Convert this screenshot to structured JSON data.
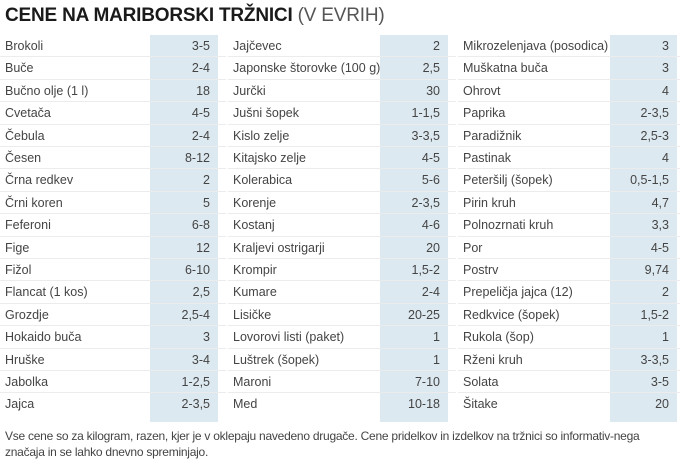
{
  "title": {
    "main": "CENE NA MARIBORSKI TRŽNICI",
    "sub": " (V EVRIH)"
  },
  "colors": {
    "price_column_bg": "#dde9f0",
    "row_divider": "#ececec",
    "text": "#444444"
  },
  "columns": [
    {
      "items": [
        {
          "name": "Brokoli",
          "price": "3-5"
        },
        {
          "name": "Buče",
          "price": "2-4"
        },
        {
          "name": "Bučno olje (1 l)",
          "price": "18"
        },
        {
          "name": "Cvetača",
          "price": "4-5"
        },
        {
          "name": "Čebula",
          "price": "2-4"
        },
        {
          "name": "Česen",
          "price": "8-12"
        },
        {
          "name": "Črna redkev",
          "price": "2"
        },
        {
          "name": "Črni koren",
          "price": "5"
        },
        {
          "name": "Feferoni",
          "price": "6-8"
        },
        {
          "name": "Fige",
          "price": "12"
        },
        {
          "name": "Fižol",
          "price": "6-10"
        },
        {
          "name": "Flancat (1 kos)",
          "price": "2,5"
        },
        {
          "name": "Grozdje",
          "price": "2,5-4"
        },
        {
          "name": "Hokaido buča",
          "price": "3"
        },
        {
          "name": "Hruške",
          "price": "3-4"
        },
        {
          "name": "Jabolka",
          "price": "1-2,5"
        },
        {
          "name": "Jajca",
          "price": "2-3,5"
        }
      ]
    },
    {
      "items": [
        {
          "name": "Jajčevec",
          "price": "2"
        },
        {
          "name": "Japonske štorovke (100 g)",
          "price": "2,5"
        },
        {
          "name": "Jurčki",
          "price": "30"
        },
        {
          "name": "Jušni šopek",
          "price": "1-1,5"
        },
        {
          "name": "Kislo zelje",
          "price": "3-3,5"
        },
        {
          "name": "Kitajsko zelje",
          "price": "4-5"
        },
        {
          "name": "Kolerabica",
          "price": "5-6"
        },
        {
          "name": "Korenje",
          "price": "2-3,5"
        },
        {
          "name": "Kostanj",
          "price": "4-6"
        },
        {
          "name": "Kraljevi ostrigarji",
          "price": "20"
        },
        {
          "name": "Krompir",
          "price": "1,5-2"
        },
        {
          "name": "Kumare",
          "price": "2-4"
        },
        {
          "name": "Lisičke",
          "price": "20-25"
        },
        {
          "name": "Lovorovi listi (paket)",
          "price": "1"
        },
        {
          "name": "Luštrek (šopek)",
          "price": "1"
        },
        {
          "name": "Maroni",
          "price": "7-10"
        },
        {
          "name": "Med",
          "price": "10-18"
        }
      ]
    },
    {
      "items": [
        {
          "name": "Mikrozelenjava (posodica)",
          "price": "3"
        },
        {
          "name": "Muškatna buča",
          "price": "3"
        },
        {
          "name": "Ohrovt",
          "price": "4"
        },
        {
          "name": "Paprika",
          "price": "2-3,5"
        },
        {
          "name": "Paradižnik",
          "price": "2,5-3"
        },
        {
          "name": "Pastinak",
          "price": "4"
        },
        {
          "name": "Peteršilj (šopek)",
          "price": "0,5-1,5"
        },
        {
          "name": "Pirin kruh",
          "price": "4,7"
        },
        {
          "name": "Polnozrnati kruh",
          "price": "3,3"
        },
        {
          "name": "Por",
          "price": "4-5"
        },
        {
          "name": "Postrv",
          "price": "9,74"
        },
        {
          "name": "Prepeličja jajca (12)",
          "price": "2"
        },
        {
          "name": "Redkvice (šopek)",
          "price": "1,5-2"
        },
        {
          "name": "Rukola (šop)",
          "price": "1"
        },
        {
          "name": "Rženi kruh",
          "price": "3-3,5"
        },
        {
          "name": "Solata",
          "price": "3-5"
        },
        {
          "name": "Šitake",
          "price": "20"
        }
      ]
    }
  ],
  "footnote": "Vse cene so za kilogram, razen, kjer je v oklepaju navedeno drugače. Cene pridelkov in izdelkov na tržnici so informativ-nega značaja in se lahko dnevno spreminjajo."
}
